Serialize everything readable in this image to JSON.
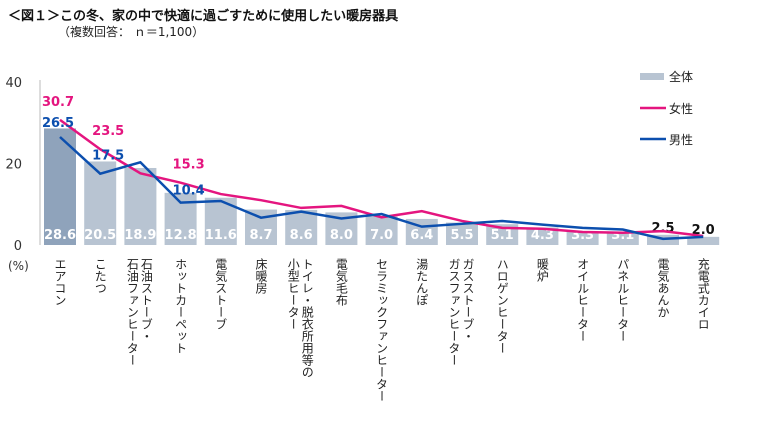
{
  "title": "＜図１＞この冬、家の中で快適に過ごすために使用したい暖房器具",
  "subtitle": "（複数回答： ｎ＝1,100）",
  "chart_data": {
    "type": "bar",
    "ylabel": "(%)",
    "ylim": [
      0,
      40
    ],
    "yticks": [
      "0",
      "20",
      "40"
    ],
    "legend_position": "top-right",
    "categories": [
      "エアコン",
      "こたつ",
      "石油ストーブ・\n石油ファンヒーター",
      "ホットカーペット",
      "電気ストーブ",
      "床暖房",
      "トイレ・脱衣所用等の\n小型ヒーター",
      "電気毛布",
      "セラミックファンヒーター",
      "湯たんぽ",
      "ガスストーブ・\nガスファンヒーター",
      "ハロゲンヒーター",
      "暖炉",
      "オイルヒーター",
      "パネルヒーター",
      "電気あんか",
      "充電式カイロ"
    ],
    "series": [
      {
        "name": "全体",
        "type": "bar",
        "color": "#b8c4d2",
        "highlight_color": "#8fa3bb",
        "values": [
          28.6,
          20.5,
          18.9,
          12.8,
          11.6,
          8.7,
          8.6,
          8.0,
          7.0,
          6.4,
          5.5,
          5.1,
          4.3,
          3.3,
          3.1,
          2.5,
          2.0
        ]
      },
      {
        "name": "女性",
        "type": "line",
        "color": "#e4157f",
        "values": [
          30.7,
          23.5,
          17.6,
          15.3,
          12.5,
          11.0,
          9.1,
          9.6,
          6.8,
          8.3,
          5.9,
          4.2,
          4.0,
          3.2,
          3.0,
          3.4,
          2.2
        ],
        "labeled": [
          0,
          1,
          3
        ]
      },
      {
        "name": "男性",
        "type": "line",
        "color": "#0c4fae",
        "values": [
          26.5,
          17.5,
          20.3,
          10.4,
          10.8,
          6.7,
          8.2,
          6.5,
          7.6,
          4.5,
          5.2,
          5.9,
          5.0,
          4.2,
          3.8,
          1.5,
          2.0
        ],
        "labeled": [
          0,
          1,
          3
        ]
      }
    ]
  }
}
